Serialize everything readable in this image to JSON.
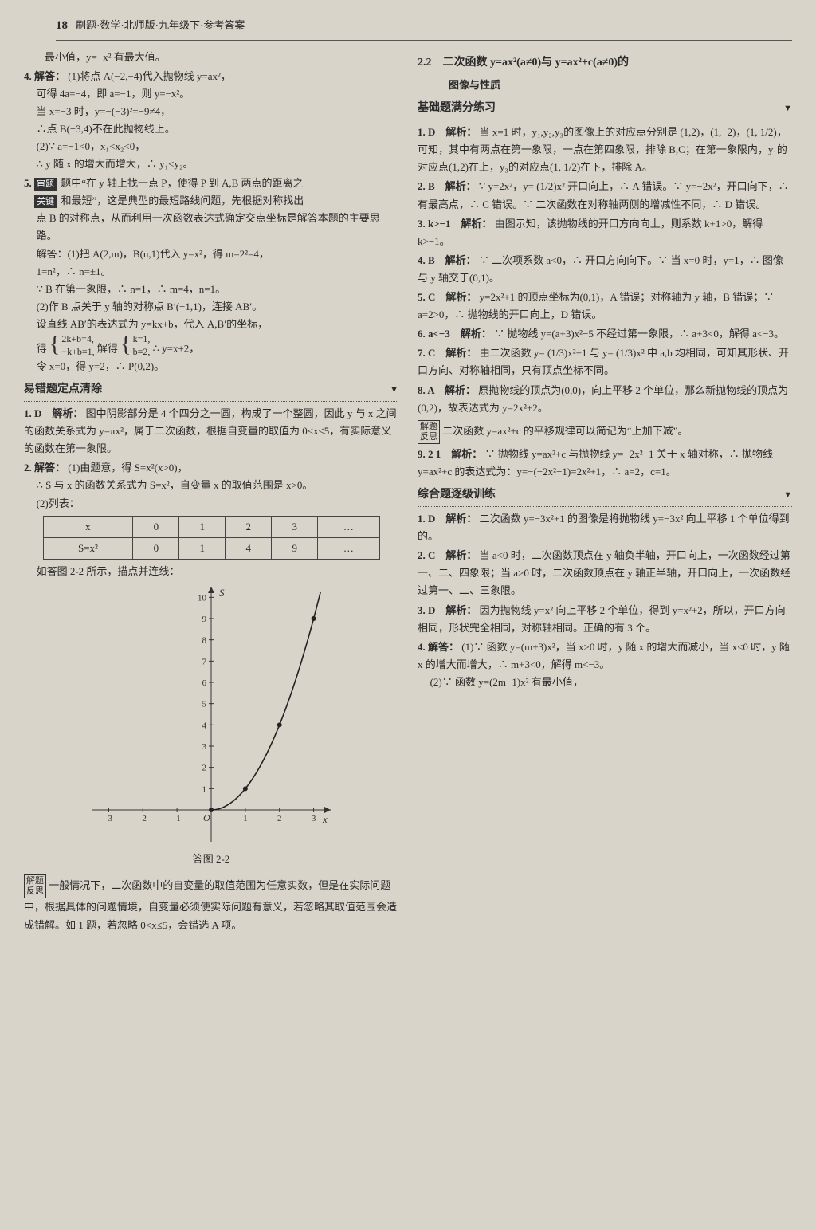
{
  "header": {
    "page": "18",
    "title": "刷题·数学·北师版·九年级下·参考答案"
  },
  "left": {
    "top_line": "最小值，y=−x² 有最大值。",
    "q4": {
      "lead": "4. 解答：",
      "l1": "(1)将点 A(−2,−4)代入抛物线 y=ax²，",
      "l2": "可得 4a=−4，即 a=−1，则 y=−x²。",
      "l3": "当 x=−3 时，y=−(−3)²=−9≠4，",
      "l4": "∴点 B(−3,4)不在此抛物线上。",
      "l5": "(2)∵ a=−1<0，x₁<x₂<0，",
      "l6": "∴ y 随 x 的增大而增大，∴ y₁<y₂。"
    },
    "q5": {
      "lead": "5.",
      "box1": "审题",
      "box2": "关键",
      "l1": "题中“在 y 轴上找一点 P，使得 P 到 A,B 两点的距离之",
      "l2": "和最短”，这是典型的最短路线问题，先根据对称找出",
      "l3": "点 B 的对称点，从而利用一次函数表达式确定交点坐标是解答本题的主要思路。",
      "l4": "解答：(1)把 A(2,m)，B(n,1)代入 y=x²，得 m=2²=4，",
      "l5": "1=n²，∴ n=±1。",
      "l6": "∵ B 在第一象限，∴ n=1，∴ m=4，n=1。",
      "l7": "(2)作 B 点关于 y 轴的对称点 B′(−1,1)，连接 AB′。",
      "l8": "设直线 AB′的表达式为 y=kx+b，代入 A,B′的坐标，",
      "l9_pre": "得",
      "b1a": "2k+b=4,",
      "b1b": "−k+b=1,",
      "l9_mid": "解得",
      "b2a": "k=1,",
      "b2b": "b=2,",
      "l9_post": "∴ y=x+2，",
      "l10": "令 x=0，得 y=2，∴ P(0,2)。"
    },
    "sec2": "易错题定点清除",
    "e1": {
      "lead": "1. D　解析：",
      "l1": "图中阴影部分是 4 个四分之一圆，构成了一个整圆，因此 y 与 x 之间的函数关系式为 y=πx²，属于二次函数，根据自变量的取值为 0<x≤5，有实际意义的函数在第一象限。"
    },
    "e2": {
      "lead": "2. 解答：",
      "l1": "(1)由题意，得 S=x²(x>0)，",
      "l2": "∴ S 与 x 的函数关系式为 S=x²，自变量 x 的取值范围是 x>0。",
      "l3": "(2)列表：",
      "tbl": {
        "h": [
          "x",
          "0",
          "1",
          "2",
          "3",
          "…"
        ],
        "r": [
          "S=x²",
          "0",
          "1",
          "4",
          "9",
          "…"
        ]
      },
      "l4": "如答图 2-2 所示，描点并连线：",
      "caption": "答图 2-2"
    },
    "graph": {
      "xlim": [
        -3.5,
        3.5
      ],
      "ylim": [
        -1.5,
        10.5
      ],
      "xticks": [
        -3,
        -2,
        -1,
        1,
        2,
        3
      ],
      "yticks": [
        1,
        2,
        3,
        4,
        5,
        6,
        7,
        8,
        9,
        10
      ],
      "points": [
        [
          0,
          0
        ],
        [
          1,
          1
        ],
        [
          2,
          4
        ],
        [
          3,
          9
        ]
      ],
      "axis_color": "#333333",
      "curve_color": "#222222",
      "bg": "#d8d4ca",
      "x_label": "x",
      "y_label": "S",
      "origin": "O"
    },
    "refl": {
      "b1": "解题",
      "b2": "反思",
      "txt": "一般情况下，二次函数中的自变量的取值范围为任意实数，但是在实际问题中，根据具体的问题情境，自变量必须使实际问题有意义，若忽略其取值范围会造成错解。如 1 题，若忽略 0<x≤5，会错选 A 项。"
    }
  },
  "right": {
    "title1": "2.2　二次函数 y=ax²(a≠0)与 y=ax²+c(a≠0)的",
    "title2": "图像与性质",
    "sec1": "基础题满分练习",
    "r1": {
      "lead": "1. D　解析：",
      "l": "当 x=1 时，y₁,y₂,y₃的图像上的对应点分别是 (1,2)，(1,−2)，(1, 1/2)，可知，其中有两点在第一象限，一点在第四象限，排除 B,C；在第一象限内，y₁的对应点(1,2)在上，y₃的对应点(1, 1/2)在下，排除 A。"
    },
    "r2": {
      "lead": "2. B　解析：",
      "l": "∵ y=2x²，y= (1/2)x² 开口向上，∴ A 错误。∵ y=−2x²，开口向下，∴ 有最高点，∴ C 错误。∵ 二次函数在对称轴两侧的增减性不同，∴ D 错误。"
    },
    "r3": {
      "lead": "3. k>−1　解析：",
      "l": "由图示知，该抛物线的开口方向向上，则系数 k+1>0，解得 k>−1。"
    },
    "r4": {
      "lead": "4. B　解析：",
      "l": "∵ 二次项系数 a<0，∴ 开口方向向下。∵ 当 x=0 时，y=1，∴ 图像与 y 轴交于(0,1)。"
    },
    "r5": {
      "lead": "5. C　解析：",
      "l": "y=2x²+1 的顶点坐标为(0,1)，A 错误；对称轴为 y 轴，B 错误；∵ a=2>0，∴ 抛物线的开口向上，D 错误。"
    },
    "r6": {
      "lead": "6. a<−3　解析：",
      "l": "∵ 抛物线 y=(a+3)x²−5 不经过第一象限，∴ a+3<0，解得 a<−3。"
    },
    "r7": {
      "lead": "7. C　解析：",
      "l": "由二次函数 y= (1/3)x²+1 与 y= (1/3)x² 中 a,b 均相同，可知其形状、开口方向、对称轴相同，只有顶点坐标不同。"
    },
    "r8": {
      "lead": "8. A　解析：",
      "l": "原抛物线的顶点为(0,0)，向上平移 2 个单位，那么新抛物线的顶点为(0,2)，故表达式为 y=2x²+2。",
      "b1": "解题",
      "b2": "反思",
      "box": "二次函数 y=ax²+c 的平移规律可以简记为“上加下减”。"
    },
    "r9": {
      "lead": "9. 2  1　解析：",
      "l": "∵ 抛物线 y=ax²+c 与抛物线 y=−2x²−1 关于 x 轴对称，∴ 抛物线 y=ax²+c 的表达式为：y=−(−2x²−1)=2x²+1，∴ a=2，c=1。"
    },
    "sec2": "综合题逐级训练",
    "c1": {
      "lead": "1. D　解析：",
      "l": "二次函数 y=−3x²+1 的图像是将抛物线 y=−3x² 向上平移 1 个单位得到的。"
    },
    "c2": {
      "lead": "2. C　解析：",
      "l": "当 a<0 时，二次函数顶点在 y 轴负半轴，开口向上，一次函数经过第一、二、四象限；当 a>0 时，二次函数顶点在 y 轴正半轴，开口向上，一次函数经过第一、二、三象限。"
    },
    "c3": {
      "lead": "3. D　解析：",
      "l": "因为抛物线 y=x² 向上平移 2 个单位，得到 y=x²+2，所以，开口方向相同，形状完全相同，对称轴相同。正确的有 3 个。"
    },
    "c4": {
      "lead": "4. 解答：",
      "l1": "(1)∵ 函数 y=(m+3)x²，当 x>0 时，y 随 x 的增大而减小，当 x<0 时，y 随 x 的增大而增大，∴ m+3<0，解得 m<−3。",
      "l2": "(2)∵ 函数 y=(2m−1)x² 有最小值，"
    }
  }
}
